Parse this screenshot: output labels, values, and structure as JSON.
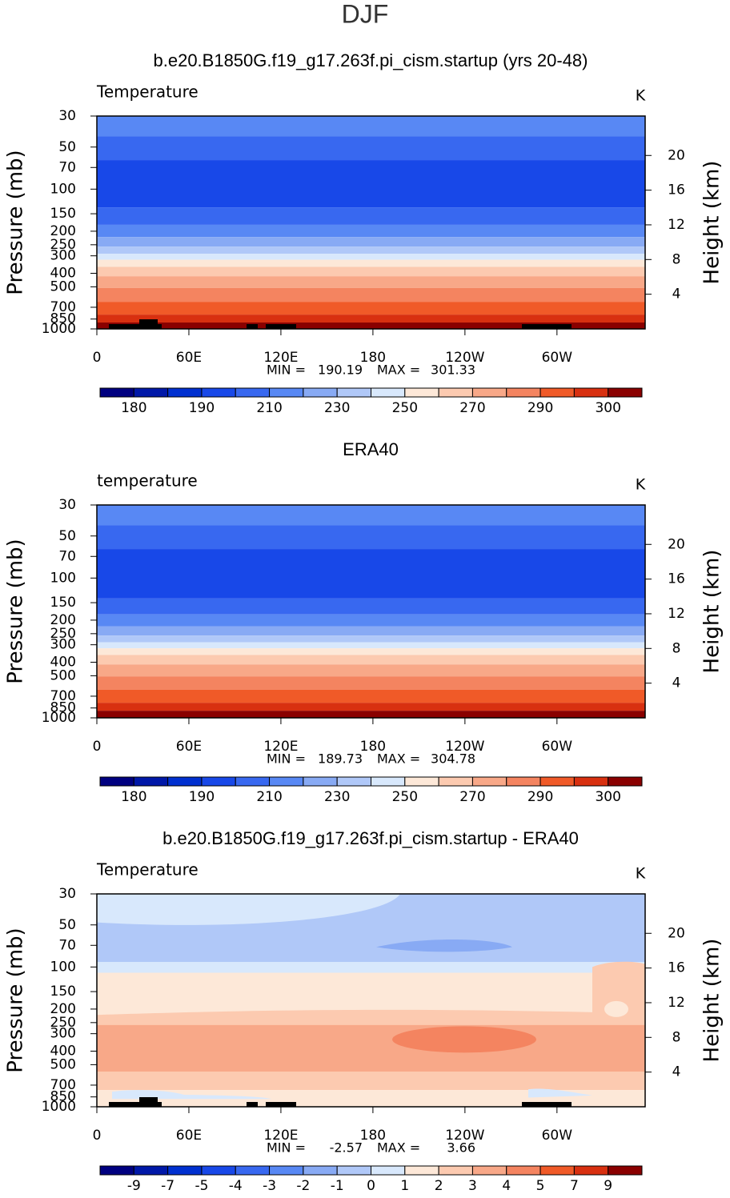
{
  "title": "DJF",
  "axes": {
    "ylabel": "Pressure (mb)",
    "y2label": "Height (km)",
    "ylim": [
      30,
      1000
    ],
    "log_y": true,
    "yticks": [
      30,
      50,
      70,
      100,
      150,
      200,
      250,
      300,
      400,
      500,
      700,
      850,
      1000
    ],
    "y2ticks": [
      4,
      8,
      12,
      16,
      20
    ],
    "xlim": [
      0,
      357.5
    ],
    "xticks": [
      0,
      {
        "value": 60,
        "label": "60E"
      },
      {
        "value": 120,
        "label": "120E"
      },
      180,
      {
        "value": 240,
        "label": "120W"
      },
      {
        "value": 300,
        "label": "60W"
      }
    ]
  },
  "palette": [
    "#000080",
    "#0018a8",
    "#0030d0",
    "#1848e8",
    "#3868f0",
    "#5888f4",
    "#88aaf4",
    "#b0c8f8",
    "#d8e8fc",
    "#fde8d8",
    "#fccab0",
    "#f8a888",
    "#f48460",
    "#f05a28",
    "#d83010",
    "#8a0000"
  ],
  "panels": [
    {
      "title": "b.e20.B1850G.f19_g17.263f.pi_cism.startup (yrs 20-48)",
      "label": "Temperature",
      "units": "K",
      "min_label": "MIN =",
      "min": 190.19,
      "max_label": "MAX =",
      "max": 301.33,
      "colorbar": [
        180,
        190,
        210,
        230,
        250,
        270,
        290,
        300
      ]
    },
    {
      "title": "ERA40",
      "label": "temperature",
      "units": "K",
      "min_label": "MIN =",
      "min": 189.73,
      "max_label": "MAX =",
      "max": 304.78,
      "colorbar": [
        180,
        190,
        210,
        230,
        250,
        270,
        290,
        300
      ]
    },
    {
      "title": "b.e20.B1850G.f19_g17.263f.pi_cism.startup - ERA40",
      "label": "Temperature",
      "units": "K",
      "min_label": "MIN =",
      "min": -2.57,
      "max_label": "MAX =",
      "max": 3.66,
      "colorbar": [
        -9,
        -7,
        -5,
        -4,
        -3,
        -2,
        -1,
        0,
        1,
        2,
        3,
        4,
        5,
        7,
        9
      ]
    }
  ]
}
